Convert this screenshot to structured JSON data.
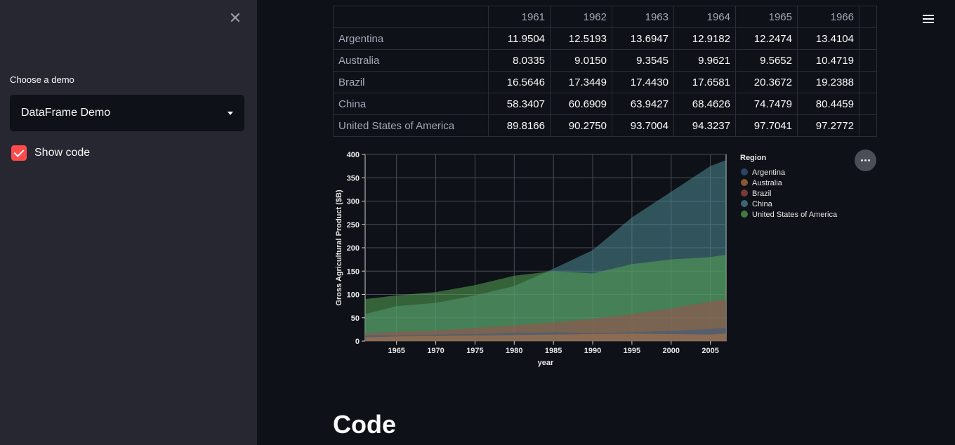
{
  "sidebar": {
    "close_glyph": "✕",
    "choose_label": "Choose a demo",
    "selected_demo": "DataFrame Demo",
    "show_code_label": "Show code",
    "show_code_checked": true
  },
  "table": {
    "columns": [
      "1961",
      "1962",
      "1963",
      "1964",
      "1965",
      "1966"
    ],
    "rows": [
      {
        "label": "Argentina",
        "values": [
          "11.9504",
          "12.5193",
          "13.6947",
          "12.9182",
          "12.2474",
          "13.4104"
        ]
      },
      {
        "label": "Australia",
        "values": [
          "8.0335",
          "9.0150",
          "9.3545",
          "9.9621",
          "9.5652",
          "10.4719"
        ]
      },
      {
        "label": "Brazil",
        "values": [
          "16.5646",
          "17.3449",
          "17.4430",
          "17.6581",
          "20.3672",
          "19.2388"
        ]
      },
      {
        "label": "China",
        "values": [
          "58.3407",
          "60.6909",
          "63.9427",
          "68.4626",
          "74.7479",
          "80.4459"
        ]
      },
      {
        "label": "United States of America",
        "values": [
          "89.8166",
          "90.2750",
          "93.7004",
          "94.3237",
          "97.7041",
          "97.2772"
        ]
      }
    ]
  },
  "chart_data": {
    "type": "area",
    "xlabel": "year",
    "ylabel": "Gross Agricultural Product ($B)",
    "xlim": [
      1961,
      2007
    ],
    "ylim": [
      0,
      400
    ],
    "x_ticks": [
      1965,
      1970,
      1975,
      1980,
      1985,
      1990,
      1995,
      2000,
      2005
    ],
    "y_ticks": [
      0,
      50,
      100,
      150,
      200,
      250,
      300,
      350,
      400
    ],
    "grid": true,
    "legend_title": "Region",
    "legend_position": "right",
    "x": [
      1961,
      1965,
      1970,
      1975,
      1980,
      1985,
      1990,
      1995,
      2000,
      2005,
      2007
    ],
    "series": [
      {
        "name": "Argentina",
        "color": "#3a5a86",
        "values": [
          12,
          12,
          14,
          15,
          18,
          19,
          17,
          19,
          22,
          26,
          28
        ]
      },
      {
        "name": "Australia",
        "color": "#b8793d",
        "values": [
          8,
          10,
          11,
          12,
          13,
          14,
          15,
          16,
          15,
          14,
          16
        ]
      },
      {
        "name": "Brazil",
        "color": "#a34c4c",
        "values": [
          17,
          20,
          23,
          28,
          34,
          40,
          48,
          58,
          70,
          85,
          90
        ]
      },
      {
        "name": "China",
        "color": "#4f8a96",
        "values": [
          58,
          75,
          82,
          98,
          118,
          155,
          195,
          265,
          320,
          375,
          388
        ]
      },
      {
        "name": "United States of America",
        "color": "#55a654",
        "values": [
          90,
          98,
          105,
          120,
          140,
          150,
          145,
          165,
          175,
          180,
          185
        ]
      }
    ]
  },
  "chart_menu_label": "chart-actions",
  "code_heading": "Code"
}
